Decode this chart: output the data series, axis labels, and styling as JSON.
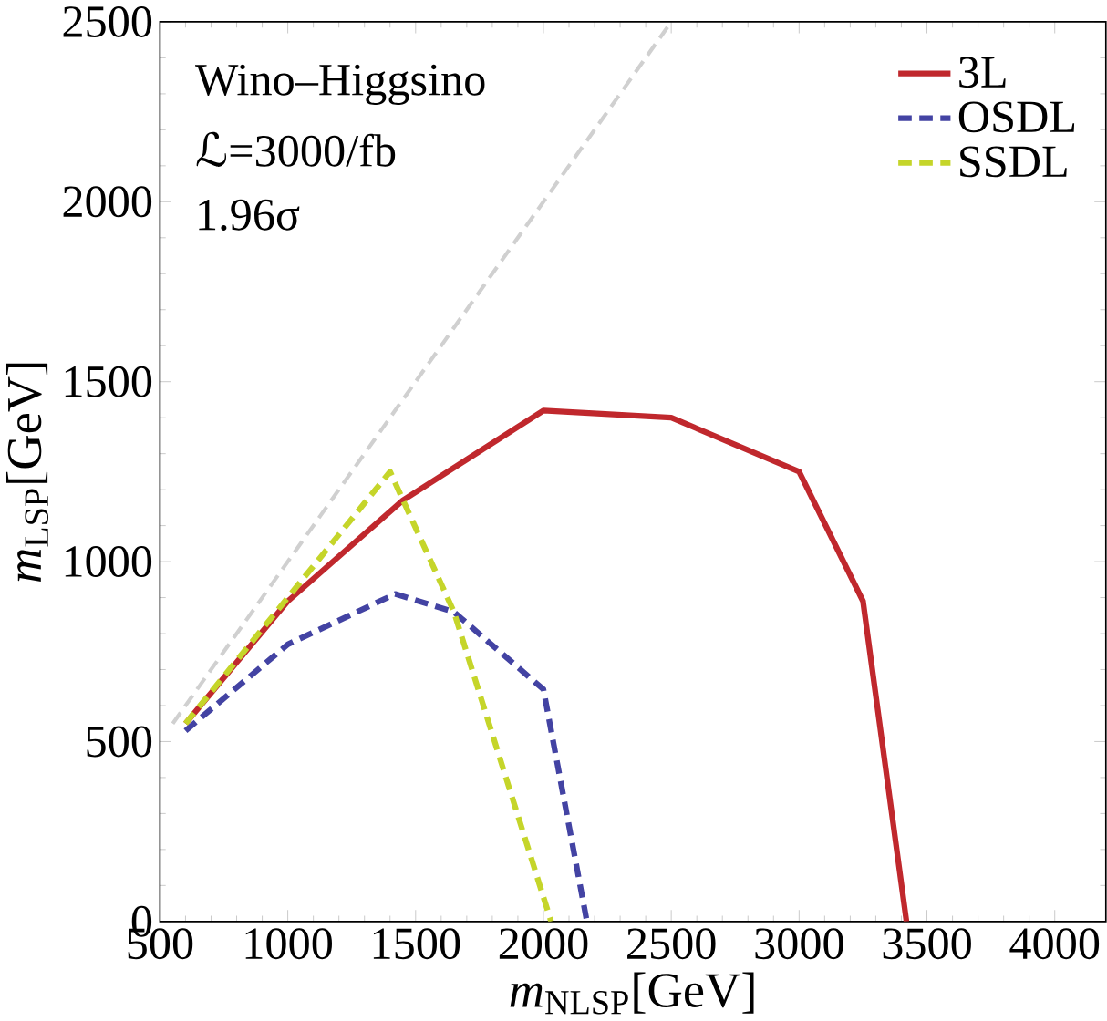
{
  "chart_data": {
    "type": "line",
    "xlabel": "*m*$_{NLSP}$[GeV]",
    "ylabel": "*m*$_{LSP}$[GeV]",
    "annotations": [
      "Wino–Higgsino",
      "ℒ=3000/fb",
      "1.96σ"
    ],
    "xlim": [
      500,
      4200
    ],
    "ylim": [
      0,
      2500
    ],
    "xticks": [
      500,
      1000,
      1500,
      2000,
      2500,
      3000,
      3500,
      4000
    ],
    "yticks": [
      0,
      500,
      1000,
      1500,
      2000,
      2500
    ],
    "legend": "top right",
    "grid": false,
    "series": [
      {
        "x": [
          550,
          2500
        ],
        "values": [
          550,
          2500
        ],
        "color": "#d0d0d0",
        "line_style": "dashed"
      },
      {
        "name": "3L",
        "color": "#c0282d",
        "line_style": "solid",
        "x": [
          600,
          1000,
          1450,
          2000,
          2500,
          3000,
          3250,
          3420
        ],
        "values": [
          550,
          890,
          1170,
          1420,
          1400,
          1250,
          890,
          0
        ]
      },
      {
        "name": "OSDL",
        "color": "#4343a3",
        "line_style": "dashed",
        "x": [
          600,
          1000,
          1420,
          1650,
          2000,
          2170
        ],
        "values": [
          530,
          770,
          910,
          860,
          645,
          0
        ]
      },
      {
        "name": "SSDL",
        "color": "#c5d52a",
        "line_style": "dashed",
        "x": [
          600,
          1000,
          1400,
          1650,
          2030
        ],
        "values": [
          550,
          900,
          1250,
          860,
          0
        ]
      }
    ]
  }
}
